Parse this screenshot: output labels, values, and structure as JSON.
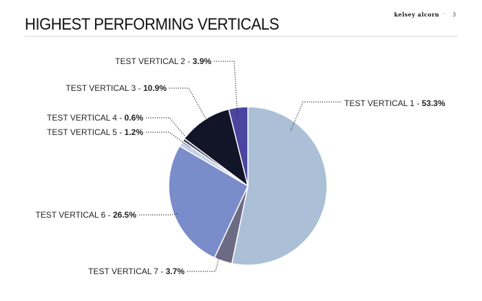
{
  "header": {
    "title": "HIGHEST PERFORMING VERTICALS",
    "brand": "kelsey alcorn",
    "separator": "·",
    "page_number": "3"
  },
  "chart_data": {
    "type": "pie",
    "title": "HIGHEST PERFORMING VERTICALS",
    "start_angle_deg": 0,
    "direction": "clockwise",
    "slices": [
      {
        "label": "TEST VERTICAL 1",
        "value": 53.3,
        "display": "53.3%",
        "color": "#abc0d6"
      },
      {
        "label": "TEST VERTICAL 7",
        "value": 3.7,
        "display": "3.7%",
        "color": "#6d6a84"
      },
      {
        "label": "TEST VERTICAL 6",
        "value": 26.5,
        "display": "26.5%",
        "color": "#7a8cca"
      },
      {
        "label": "TEST VERTICAL 5",
        "value": 1.2,
        "display": "1.2%",
        "color": "#c7d1ea"
      },
      {
        "label": "TEST VERTICAL 4",
        "value": 0.6,
        "display": "0.6%",
        "color": "#3a3f5a"
      },
      {
        "label": "TEST VERTICAL 3",
        "value": 10.9,
        "display": "10.9%",
        "color": "#121428"
      },
      {
        "label": "TEST VERTICAL 2",
        "value": 3.9,
        "display": "3.9%",
        "color": "#4b45a0"
      }
    ]
  }
}
